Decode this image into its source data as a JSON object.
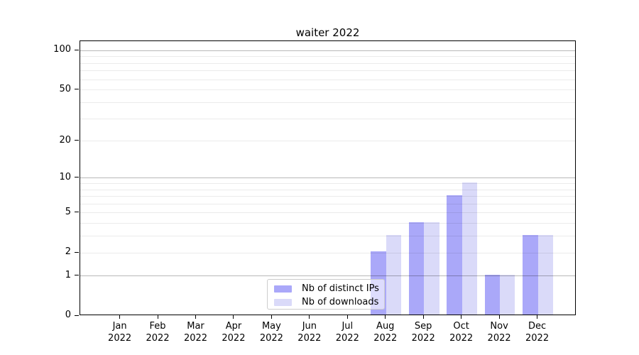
{
  "chart_data": {
    "type": "bar",
    "title": "waiter 2022",
    "categories": [
      "Jan 2022",
      "Feb 2022",
      "Mar 2022",
      "Apr 2022",
      "May 2022",
      "Jun 2022",
      "Jul 2022",
      "Aug 2022",
      "Sep 2022",
      "Oct 2022",
      "Nov 2022",
      "Dec 2022"
    ],
    "x_tick_month_labels": [
      "Jan",
      "Feb",
      "Mar",
      "Apr",
      "May",
      "Jun",
      "Jul",
      "Aug",
      "Sep",
      "Oct",
      "Nov",
      "Dec"
    ],
    "x_tick_year_label": "2022",
    "series": [
      {
        "name": "Nb of distinct IPs",
        "color": "#aaa8f9",
        "values": [
          0,
          0,
          0,
          0,
          0,
          0,
          0,
          2,
          4,
          7,
          1,
          3
        ]
      },
      {
        "name": "Nb of downloads",
        "color": "#dadaf9",
        "values": [
          0,
          0,
          0,
          0,
          0,
          0,
          0,
          3,
          4,
          9,
          1,
          3
        ]
      }
    ],
    "yscale": "log1p",
    "ylim": [
      0,
      118.2
    ],
    "y_major_ticks": [
      0,
      1,
      2,
      5,
      10,
      20,
      50,
      100
    ],
    "y_tick_labels": [
      "0",
      "1",
      "2",
      "5",
      "10",
      "20",
      "50",
      "100"
    ],
    "y_major_gridlines": [
      1,
      10,
      100
    ],
    "y_minor_gridlines": [
      2,
      3,
      4,
      5,
      6,
      7,
      8,
      9,
      20,
      30,
      40,
      50,
      60,
      70,
      80,
      90
    ],
    "grid": "horizontal",
    "legend_position": "lower-center-left",
    "spine_color": "#000000",
    "background_color": "#ffffff"
  }
}
